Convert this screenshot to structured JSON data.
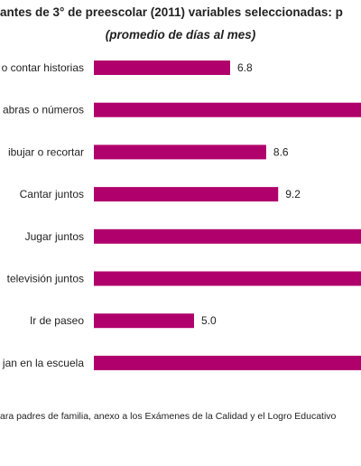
{
  "chart_data": {
    "type": "bar",
    "orientation": "horizontal",
    "title": "antes de 3° de preescolar  (2011) variables seleccionadas: p",
    "subtitle": "(promedio de días al mes)",
    "categories": [
      "o contar historias",
      "abras o números",
      "ibujar o recortar",
      "Cantar juntos",
      "Jugar juntos",
      "televisión juntos",
      "Ir de paseo",
      "jan en la escuela"
    ],
    "values": [
      6.8,
      null,
      8.6,
      9.2,
      null,
      null,
      5.0,
      null
    ],
    "value_labels": [
      "6.8",
      "",
      "8.6",
      "9.2",
      "",
      "",
      "5.0",
      ""
    ],
    "bar_color": "#b0006b",
    "grid": false,
    "legend": "none"
  },
  "source": "ara padres de familia, anexo a los Exámenes de la Calidad y el Logro Educativo"
}
